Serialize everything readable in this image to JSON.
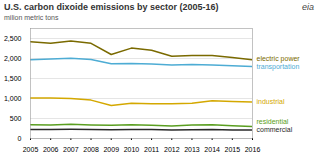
{
  "chart_data": {
    "type": "line",
    "title": "U.S. carbon dixoide emissions by sector (2005-16)",
    "ylabel": "milion metric tons",
    "annotations": [
      "eia"
    ],
    "x": [
      2005,
      2006,
      2007,
      2008,
      2009,
      2010,
      2011,
      2012,
      2013,
      2014,
      2015,
      2016
    ],
    "xlim": [
      2005,
      2016
    ],
    "xticks": [
      2005,
      2006,
      2007,
      2008,
      2009,
      2010,
      2011,
      2012,
      2013,
      2014,
      2015,
      2016
    ],
    "ylim": [
      0,
      2750
    ],
    "yticks": [
      0,
      500,
      {
        "value": 1000,
        "label": "1,000"
      },
      {
        "value": 1500,
        "label": "1,500"
      },
      {
        "value": 2000,
        "label": "2,000"
      },
      {
        "value": 2500,
        "label": "2,500"
      }
    ],
    "grid": true,
    "legend": "right",
    "series": [
      {
        "name": "electric power",
        "color": "#7a6a00",
        "values": [
          2420,
          2380,
          2440,
          2380,
          2100,
          2260,
          2205,
          2055,
          2075,
          2075,
          2025,
          1970
        ]
      },
      {
        "name": "transportation",
        "color": "#4dacd4",
        "values": [
          1970,
          1985,
          2005,
          1975,
          1870,
          1875,
          1865,
          1840,
          1850,
          1840,
          1820,
          1800
        ]
      },
      {
        "name": "industrial",
        "color": "#d4a800",
        "values": [
          1010,
          1010,
          1000,
          960,
          825,
          880,
          870,
          870,
          880,
          945,
          925,
          915
        ]
      },
      {
        "name": "residential",
        "color": "#5a9e20",
        "values": [
          345,
          340,
          355,
          340,
          330,
          345,
          330,
          310,
          335,
          345,
          320,
          300
        ]
      },
      {
        "name": "commercial",
        "color": "#2a2a2a",
        "values": [
          225,
          228,
          232,
          228,
          218,
          222,
          222,
          212,
          220,
          222,
          212,
          210
        ]
      }
    ]
  }
}
